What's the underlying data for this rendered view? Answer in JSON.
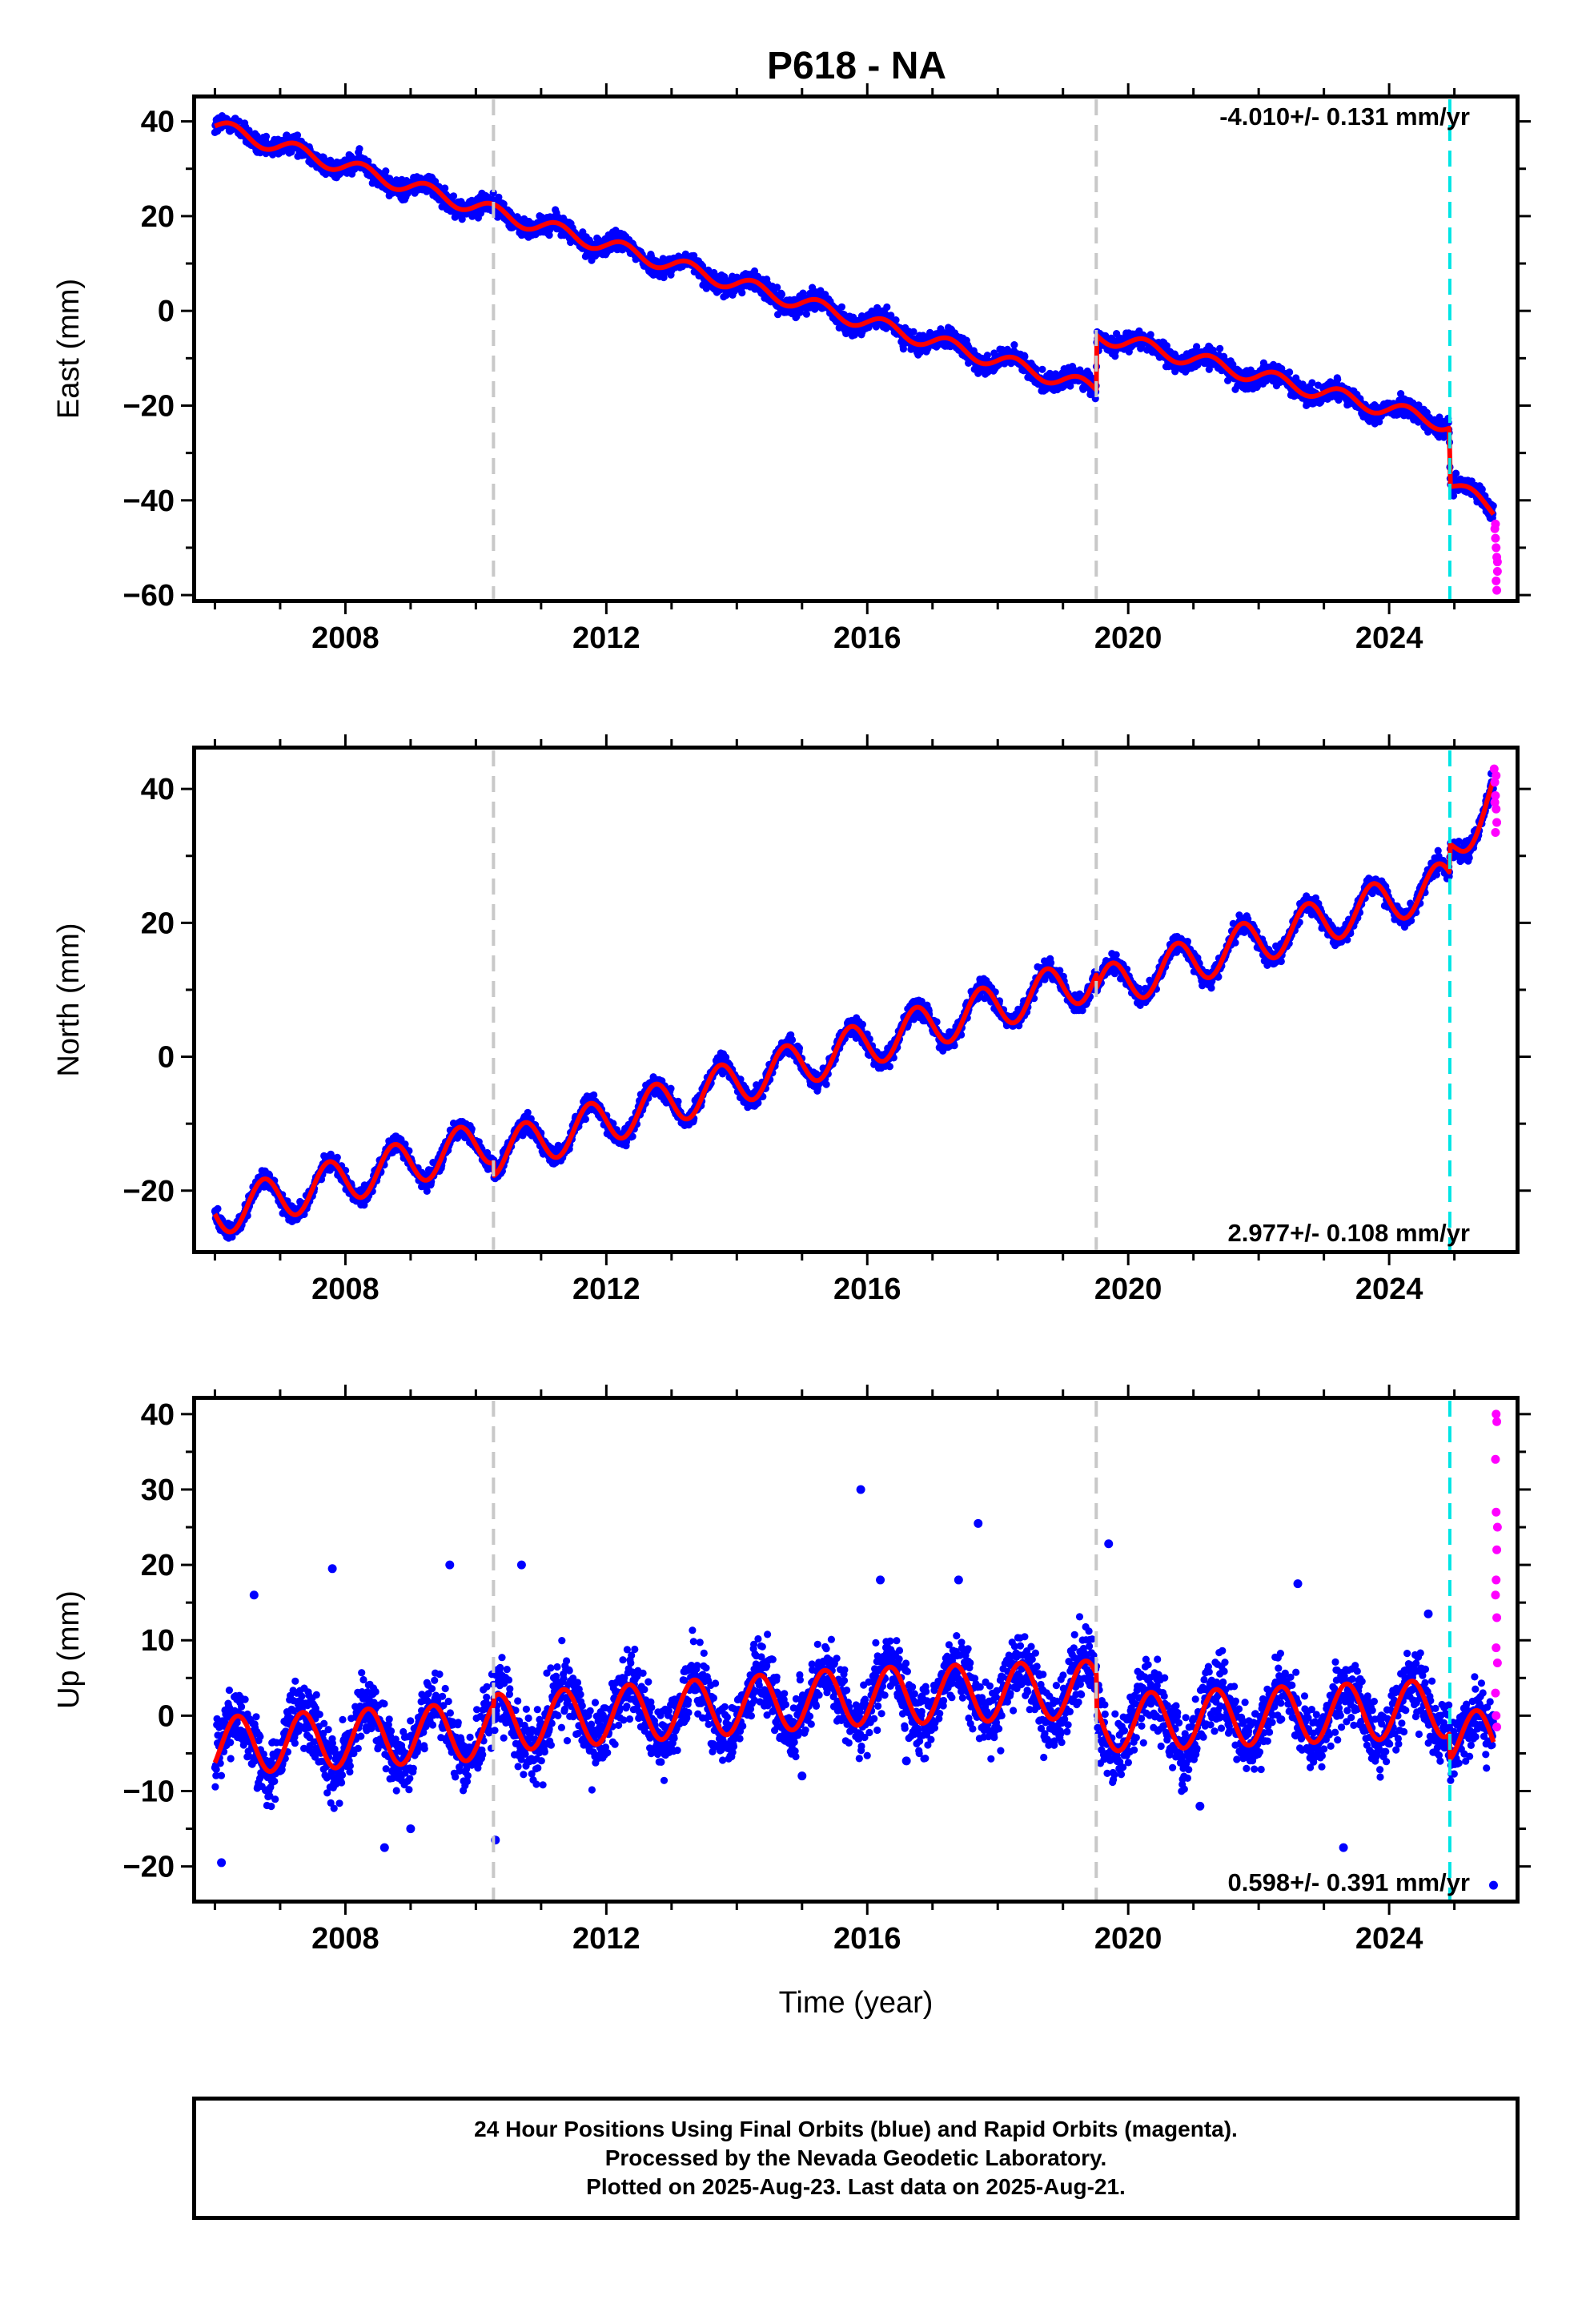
{
  "title": "P618 - NA",
  "xlabel": "Time (year)",
  "colors": {
    "final_orbits": "#0000ff",
    "rapid_orbits": "#ff00ff",
    "model": "#ff0000",
    "equipment_change": "#c8c8c8",
    "earthquake": "#00e5e5"
  },
  "footer": {
    "line1": "24 Hour Positions Using Final Orbits (blue) and Rapid Orbits (magenta).",
    "line2": "Processed by the Nevada Geodetic Laboratory.",
    "line3": "Plotted on 2025-Aug-23. Last data on 2025-Aug-21."
  },
  "chart_data": [
    {
      "type": "scatter",
      "component": "east",
      "ylabel": "East (mm)",
      "rate_label": "-4.010+/- 0.131 mm/yr",
      "rate_position": "top-right",
      "xlim": [
        2005.7,
        2025.95
      ],
      "ylim": [
        -61,
        45
      ],
      "x_ticks": [
        2008,
        2012,
        2016,
        2020,
        2024
      ],
      "y_ticks": [
        -60,
        -40,
        -20,
        0,
        20,
        40
      ],
      "grey_dashed_lines": [
        2010.27,
        2019.51
      ],
      "cyan_dashed_lines": [
        2024.93
      ],
      "model_anchors": [
        [
          2006.0,
          39.0
        ],
        [
          2010.27,
          20.9
        ],
        [
          2019.51,
          -16.6
        ],
        [
          2019.52,
          -5.0
        ],
        [
          2024.92,
          -24.0
        ],
        [
          2024.94,
          -36.5
        ],
        [
          2025.6,
          -42.0
        ]
      ],
      "seasonal_amplitude": 1.6,
      "seasonal_phase": 0.0,
      "scatter_spread": 1.8,
      "rapid_points": [
        [
          2025.62,
          -46
        ],
        [
          2025.63,
          -48
        ],
        [
          2025.64,
          -50
        ],
        [
          2025.65,
          -52
        ],
        [
          2025.66,
          -55
        ],
        [
          2025.64,
          -57
        ],
        [
          2025.65,
          -59
        ],
        [
          2025.63,
          -45
        ],
        [
          2025.66,
          -53
        ]
      ]
    },
    {
      "type": "scatter",
      "component": "north",
      "ylabel": "North (mm)",
      "rate_label": "2.977+/- 0.108 mm/yr",
      "rate_position": "bottom-right",
      "xlim": [
        2005.7,
        2025.95
      ],
      "ylim": [
        -29,
        46
      ],
      "x_ticks": [
        2008,
        2012,
        2016,
        2020,
        2024
      ],
      "y_ticks": [
        -20,
        0,
        20,
        40
      ],
      "grey_dashed_lines": [
        2010.27,
        2019.51
      ],
      "cyan_dashed_lines": [
        2024.93
      ],
      "model_anchors": [
        [
          2006.0,
          -23.5
        ],
        [
          2010.27,
          -12.5
        ],
        [
          2010.28,
          -14.5
        ],
        [
          2019.51,
          12.0
        ],
        [
          2019.52,
          10.0
        ],
        [
          2024.92,
          26.0
        ],
        [
          2024.94,
          30.5
        ],
        [
          2025.6,
          39.5
        ]
      ],
      "seasonal_amplitude": 3.3,
      "seasonal_phase": 0.5,
      "scatter_spread": 1.2,
      "rapid_points": [
        [
          2025.61,
          43
        ],
        [
          2025.62,
          41
        ],
        [
          2025.63,
          39
        ],
        [
          2025.64,
          37
        ],
        [
          2025.65,
          35
        ],
        [
          2025.63,
          33.5
        ],
        [
          2025.64,
          42
        ],
        [
          2025.62,
          38
        ]
      ]
    },
    {
      "type": "scatter",
      "component": "up",
      "ylabel": "Up (mm)",
      "rate_label": "0.598+/- 0.391 mm/yr",
      "rate_position": "bottom-right",
      "xlim": [
        2005.7,
        2025.95
      ],
      "ylim": [
        -24.5,
        42
      ],
      "x_ticks": [
        2008,
        2012,
        2016,
        2020,
        2024
      ],
      "y_ticks": [
        -20,
        -10,
        0,
        10,
        20,
        30,
        40
      ],
      "grey_dashed_lines": [
        2010.27,
        2019.51
      ],
      "cyan_dashed_lines": [
        2024.93
      ],
      "model_anchors": [
        [
          2006.0,
          -4.0
        ],
        [
          2010.27,
          -2.0
        ],
        [
          2010.28,
          -1.0
        ],
        [
          2015.8,
          2.5
        ],
        [
          2019.51,
          3.5
        ],
        [
          2019.52,
          -1.0
        ],
        [
          2024.92,
          1.0
        ],
        [
          2024.94,
          -2.5
        ],
        [
          2025.6,
          -3.5
        ]
      ],
      "seasonal_amplitude": 3.8,
      "seasonal_phase": 0.1,
      "scatter_spread": 4.0,
      "rapid_points": [
        [
          2025.64,
          40
        ],
        [
          2025.65,
          39
        ],
        [
          2025.63,
          34
        ],
        [
          2025.64,
          27
        ],
        [
          2025.66,
          25
        ],
        [
          2025.65,
          22
        ],
        [
          2025.64,
          18
        ],
        [
          2025.63,
          16
        ],
        [
          2025.65,
          13
        ],
        [
          2025.64,
          9
        ],
        [
          2025.66,
          7
        ],
        [
          2025.63,
          3
        ],
        [
          2025.64,
          0
        ],
        [
          2025.65,
          -1.5
        ]
      ],
      "outlier_points": [
        [
          2006.1,
          -19.5
        ],
        [
          2006.6,
          16
        ],
        [
          2007.8,
          19.5
        ],
        [
          2008.6,
          -17.5
        ],
        [
          2009.0,
          -15
        ],
        [
          2009.6,
          20
        ],
        [
          2010.3,
          -16.5
        ],
        [
          2010.7,
          20
        ],
        [
          2015.0,
          -8
        ],
        [
          2015.9,
          30
        ],
        [
          2016.2,
          18
        ],
        [
          2016.6,
          -6
        ],
        [
          2017.4,
          18
        ],
        [
          2017.7,
          25.5
        ],
        [
          2019.7,
          22.8
        ],
        [
          2021.1,
          -12
        ],
        [
          2022.6,
          17.5
        ],
        [
          2023.3,
          -17.5
        ],
        [
          2024.6,
          13.5
        ],
        [
          2025.6,
          -22.5
        ]
      ]
    }
  ]
}
